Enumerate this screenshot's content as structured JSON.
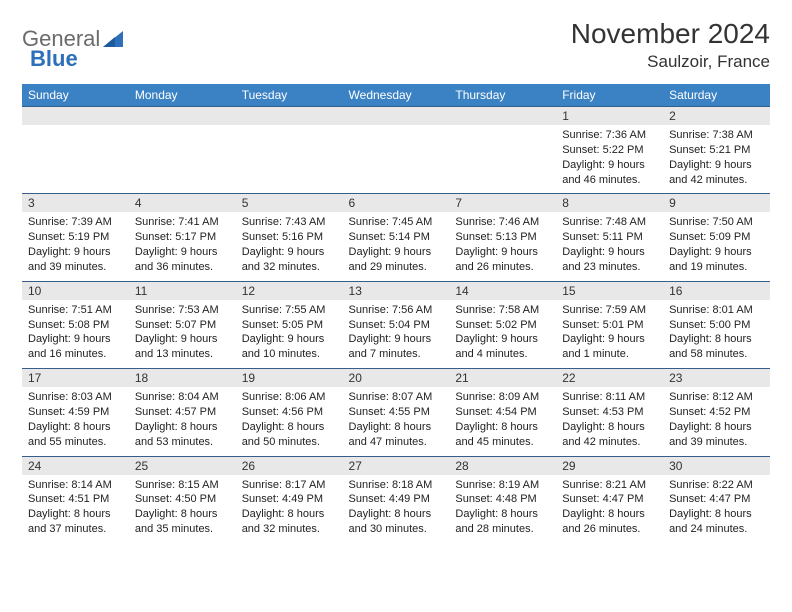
{
  "logo": {
    "text1": "General",
    "text2": "Blue"
  },
  "title": "November 2024",
  "location": "Saulzoir, France",
  "colors": {
    "header_bg": "#3b82c4",
    "header_text": "#ffffff",
    "daynum_bg": "#e8e8e8",
    "border": "#355f8a",
    "logo_gray": "#6b6b6b",
    "logo_blue": "#2d6fb8"
  },
  "day_headers": [
    "Sunday",
    "Monday",
    "Tuesday",
    "Wednesday",
    "Thursday",
    "Friday",
    "Saturday"
  ],
  "weeks": [
    [
      null,
      null,
      null,
      null,
      null,
      {
        "n": "1",
        "sr": "Sunrise: 7:36 AM",
        "ss": "Sunset: 5:22 PM",
        "dl": "Daylight: 9 hours and 46 minutes."
      },
      {
        "n": "2",
        "sr": "Sunrise: 7:38 AM",
        "ss": "Sunset: 5:21 PM",
        "dl": "Daylight: 9 hours and 42 minutes."
      }
    ],
    [
      {
        "n": "3",
        "sr": "Sunrise: 7:39 AM",
        "ss": "Sunset: 5:19 PM",
        "dl": "Daylight: 9 hours and 39 minutes."
      },
      {
        "n": "4",
        "sr": "Sunrise: 7:41 AM",
        "ss": "Sunset: 5:17 PM",
        "dl": "Daylight: 9 hours and 36 minutes."
      },
      {
        "n": "5",
        "sr": "Sunrise: 7:43 AM",
        "ss": "Sunset: 5:16 PM",
        "dl": "Daylight: 9 hours and 32 minutes."
      },
      {
        "n": "6",
        "sr": "Sunrise: 7:45 AM",
        "ss": "Sunset: 5:14 PM",
        "dl": "Daylight: 9 hours and 29 minutes."
      },
      {
        "n": "7",
        "sr": "Sunrise: 7:46 AM",
        "ss": "Sunset: 5:13 PM",
        "dl": "Daylight: 9 hours and 26 minutes."
      },
      {
        "n": "8",
        "sr": "Sunrise: 7:48 AM",
        "ss": "Sunset: 5:11 PM",
        "dl": "Daylight: 9 hours and 23 minutes."
      },
      {
        "n": "9",
        "sr": "Sunrise: 7:50 AM",
        "ss": "Sunset: 5:09 PM",
        "dl": "Daylight: 9 hours and 19 minutes."
      }
    ],
    [
      {
        "n": "10",
        "sr": "Sunrise: 7:51 AM",
        "ss": "Sunset: 5:08 PM",
        "dl": "Daylight: 9 hours and 16 minutes."
      },
      {
        "n": "11",
        "sr": "Sunrise: 7:53 AM",
        "ss": "Sunset: 5:07 PM",
        "dl": "Daylight: 9 hours and 13 minutes."
      },
      {
        "n": "12",
        "sr": "Sunrise: 7:55 AM",
        "ss": "Sunset: 5:05 PM",
        "dl": "Daylight: 9 hours and 10 minutes."
      },
      {
        "n": "13",
        "sr": "Sunrise: 7:56 AM",
        "ss": "Sunset: 5:04 PM",
        "dl": "Daylight: 9 hours and 7 minutes."
      },
      {
        "n": "14",
        "sr": "Sunrise: 7:58 AM",
        "ss": "Sunset: 5:02 PM",
        "dl": "Daylight: 9 hours and 4 minutes."
      },
      {
        "n": "15",
        "sr": "Sunrise: 7:59 AM",
        "ss": "Sunset: 5:01 PM",
        "dl": "Daylight: 9 hours and 1 minute."
      },
      {
        "n": "16",
        "sr": "Sunrise: 8:01 AM",
        "ss": "Sunset: 5:00 PM",
        "dl": "Daylight: 8 hours and 58 minutes."
      }
    ],
    [
      {
        "n": "17",
        "sr": "Sunrise: 8:03 AM",
        "ss": "Sunset: 4:59 PM",
        "dl": "Daylight: 8 hours and 55 minutes."
      },
      {
        "n": "18",
        "sr": "Sunrise: 8:04 AM",
        "ss": "Sunset: 4:57 PM",
        "dl": "Daylight: 8 hours and 53 minutes."
      },
      {
        "n": "19",
        "sr": "Sunrise: 8:06 AM",
        "ss": "Sunset: 4:56 PM",
        "dl": "Daylight: 8 hours and 50 minutes."
      },
      {
        "n": "20",
        "sr": "Sunrise: 8:07 AM",
        "ss": "Sunset: 4:55 PM",
        "dl": "Daylight: 8 hours and 47 minutes."
      },
      {
        "n": "21",
        "sr": "Sunrise: 8:09 AM",
        "ss": "Sunset: 4:54 PM",
        "dl": "Daylight: 8 hours and 45 minutes."
      },
      {
        "n": "22",
        "sr": "Sunrise: 8:11 AM",
        "ss": "Sunset: 4:53 PM",
        "dl": "Daylight: 8 hours and 42 minutes."
      },
      {
        "n": "23",
        "sr": "Sunrise: 8:12 AM",
        "ss": "Sunset: 4:52 PM",
        "dl": "Daylight: 8 hours and 39 minutes."
      }
    ],
    [
      {
        "n": "24",
        "sr": "Sunrise: 8:14 AM",
        "ss": "Sunset: 4:51 PM",
        "dl": "Daylight: 8 hours and 37 minutes."
      },
      {
        "n": "25",
        "sr": "Sunrise: 8:15 AM",
        "ss": "Sunset: 4:50 PM",
        "dl": "Daylight: 8 hours and 35 minutes."
      },
      {
        "n": "26",
        "sr": "Sunrise: 8:17 AM",
        "ss": "Sunset: 4:49 PM",
        "dl": "Daylight: 8 hours and 32 minutes."
      },
      {
        "n": "27",
        "sr": "Sunrise: 8:18 AM",
        "ss": "Sunset: 4:49 PM",
        "dl": "Daylight: 8 hours and 30 minutes."
      },
      {
        "n": "28",
        "sr": "Sunrise: 8:19 AM",
        "ss": "Sunset: 4:48 PM",
        "dl": "Daylight: 8 hours and 28 minutes."
      },
      {
        "n": "29",
        "sr": "Sunrise: 8:21 AM",
        "ss": "Sunset: 4:47 PM",
        "dl": "Daylight: 8 hours and 26 minutes."
      },
      {
        "n": "30",
        "sr": "Sunrise: 8:22 AM",
        "ss": "Sunset: 4:47 PM",
        "dl": "Daylight: 8 hours and 24 minutes."
      }
    ]
  ]
}
